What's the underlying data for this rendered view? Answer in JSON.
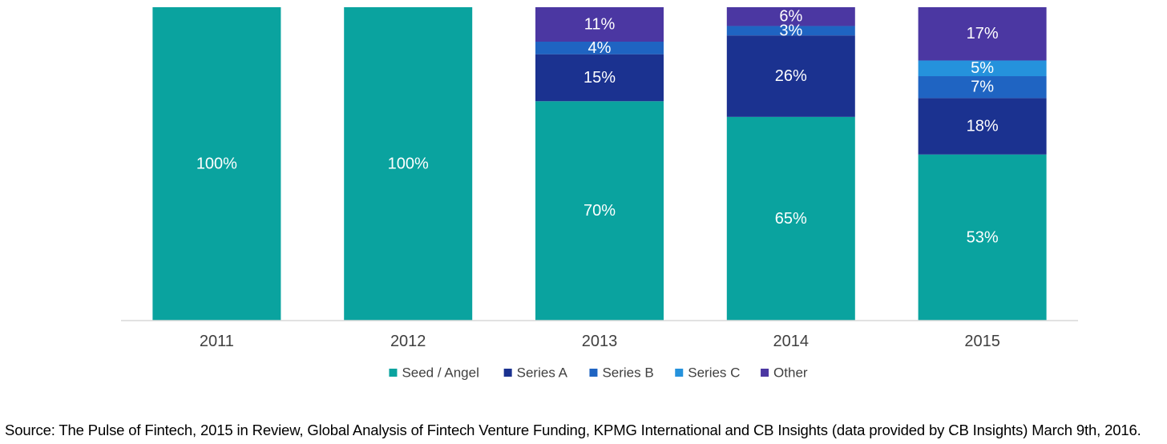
{
  "chart_data": {
    "type": "bar",
    "stacked": true,
    "categories": [
      "2011",
      "2012",
      "2013",
      "2014",
      "2015"
    ],
    "series": [
      {
        "name": "Seed / Angel",
        "color": "#0aa39f",
        "values": [
          100,
          100,
          70,
          65,
          53
        ],
        "labels": [
          "100%",
          "100%",
          "70%",
          "65%",
          "53%"
        ]
      },
      {
        "name": "Series A",
        "color": "#1b3290",
        "values": [
          0,
          0,
          15,
          26,
          18
        ],
        "labels": [
          "",
          "",
          "15%",
          "26%",
          "18%"
        ]
      },
      {
        "name": "Series B",
        "color": "#1f64c2",
        "values": [
          0,
          0,
          4,
          3,
          7
        ],
        "labels": [
          "",
          "",
          "4%",
          "3%",
          "7%"
        ]
      },
      {
        "name": "Series C",
        "color": "#2592dc",
        "values": [
          0,
          0,
          0,
          0,
          5
        ],
        "labels": [
          "",
          "",
          "",
          "",
          "5%"
        ]
      },
      {
        "name": "Other",
        "color": "#4b37a2",
        "values": [
          0,
          0,
          11,
          6,
          17
        ],
        "labels": [
          "",
          "",
          "11%",
          "6%",
          "17%"
        ]
      }
    ],
    "ylim": [
      0,
      100
    ],
    "grid": false,
    "legend_position": "bottom",
    "title": "",
    "xlabel": "",
    "ylabel": ""
  },
  "footer": {
    "source": "Source: The Pulse of Fintech, 2015 in Review, Global Analysis of Fintech Venture Funding, KPMG International and CB Insights (data provided by CB Insights) March 9th, 2016."
  }
}
